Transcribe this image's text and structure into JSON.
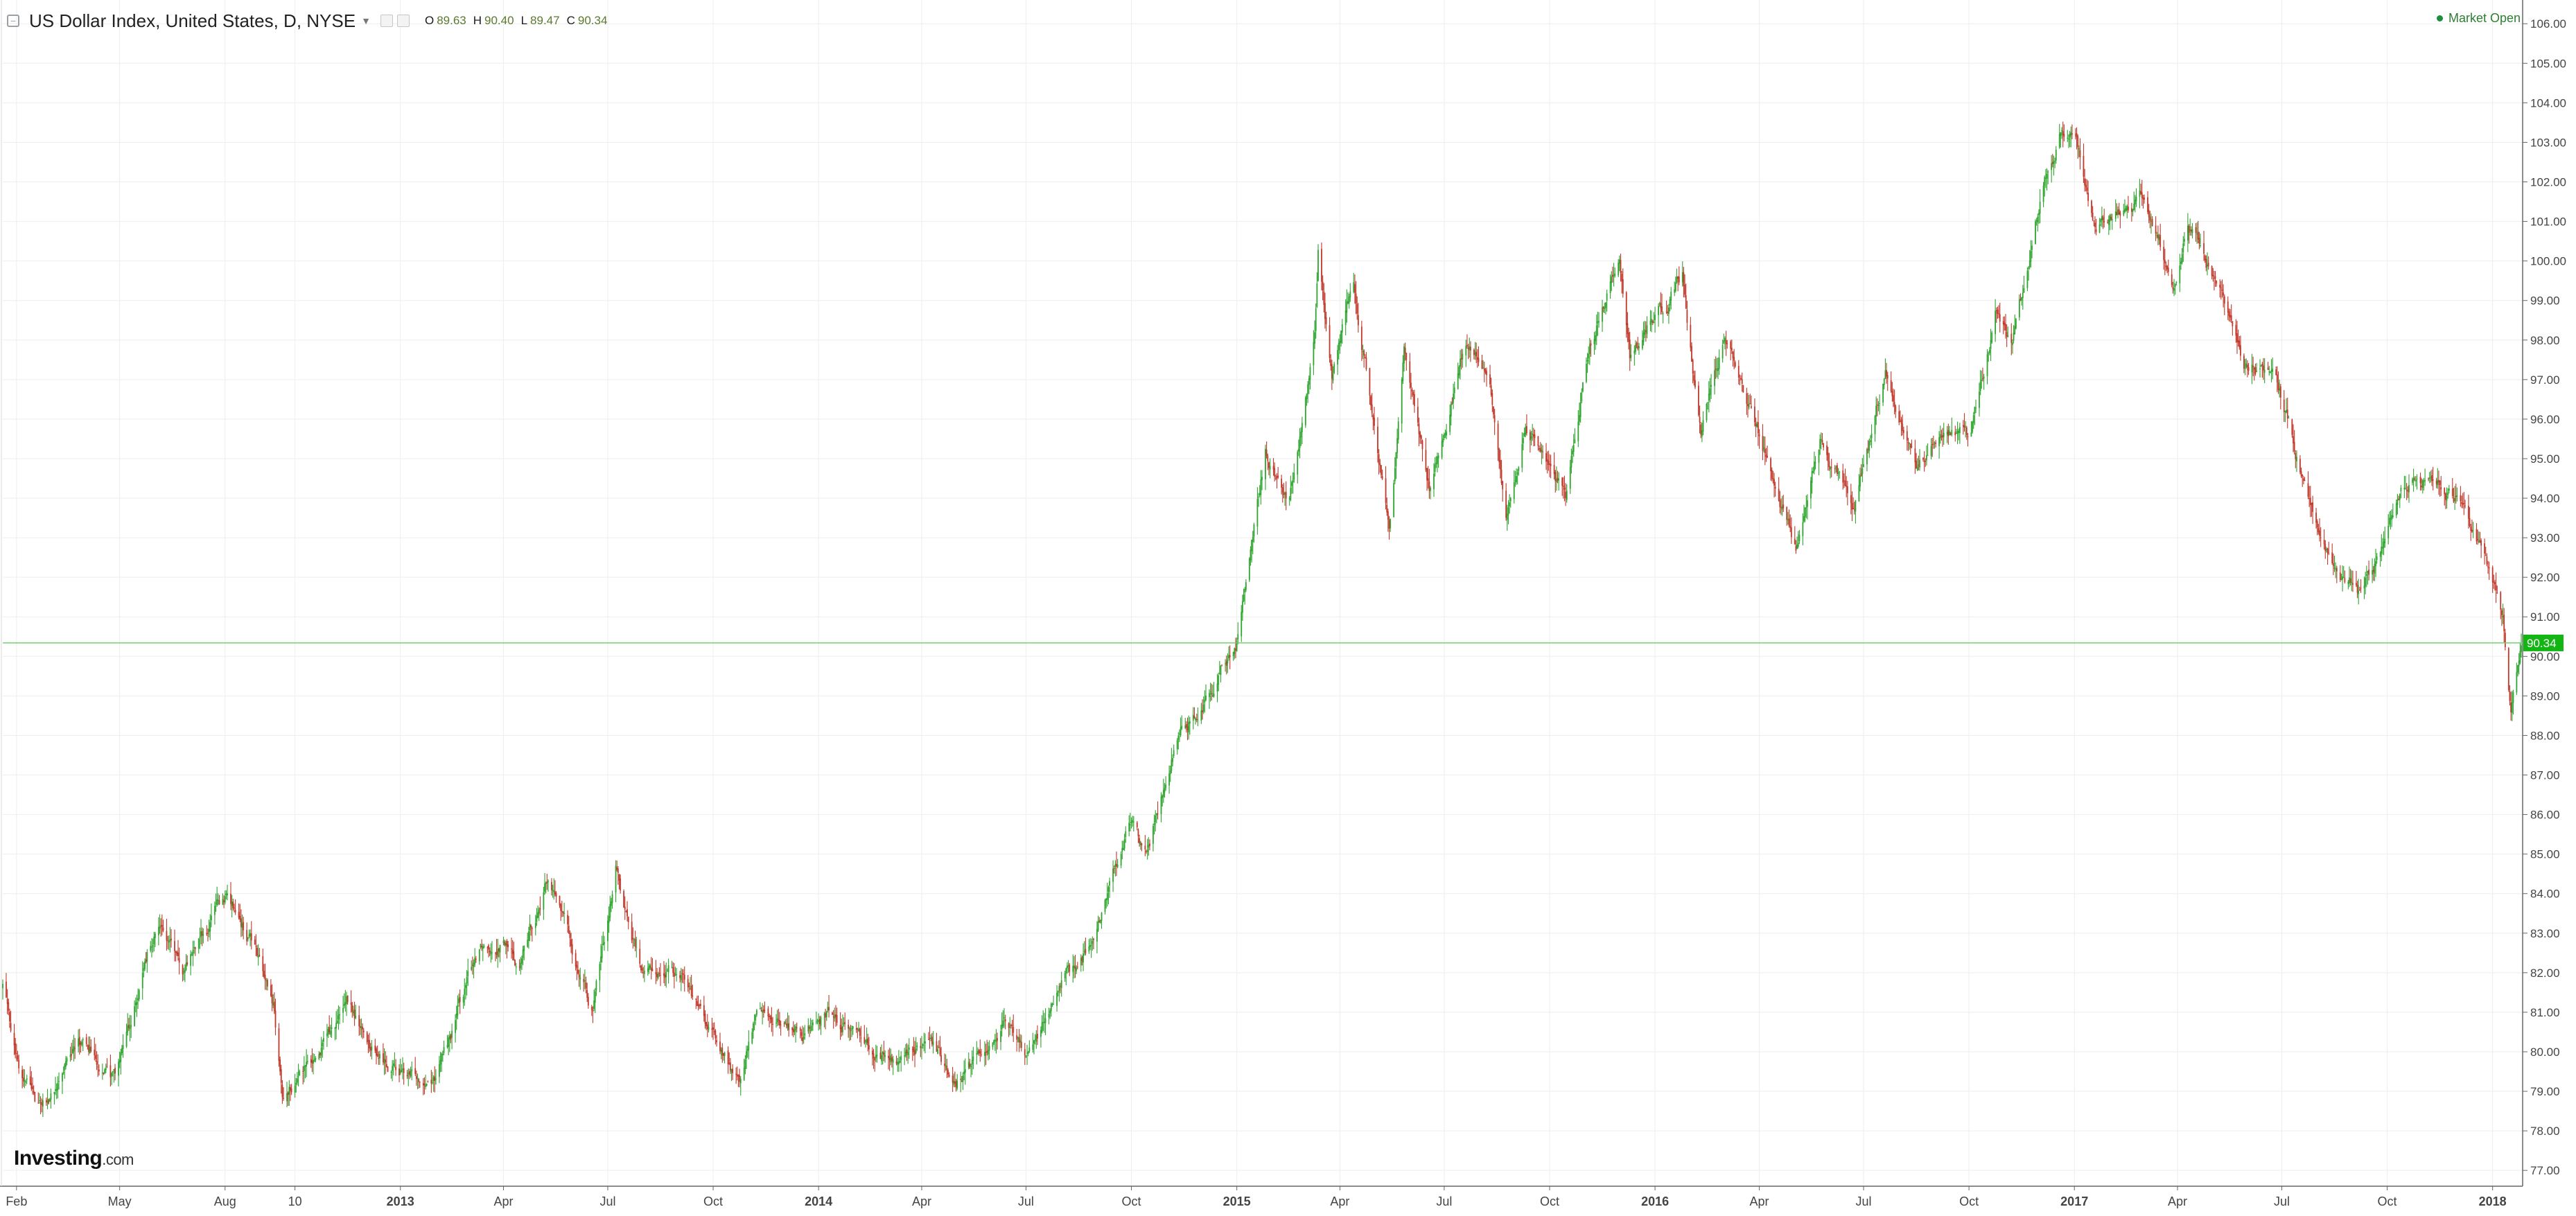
{
  "header": {
    "title": "US Dollar Index, United States, D, NYSE",
    "ohlc": {
      "o_label": "O",
      "o": "89.63",
      "h_label": "H",
      "h": "90.40",
      "l_label": "L",
      "l": "89.47",
      "c_label": "C",
      "c": "90.34"
    },
    "market_status": "Market Open"
  },
  "logo": {
    "brand": "Investing",
    "suffix": ".com"
  },
  "icons": {
    "collapse": "minus-square-icon",
    "dropdown": "caret-down-icon",
    "status": "green-dot-icon"
  },
  "colors": {
    "up": "#2ea52e",
    "down": "#c0392b",
    "last_price_line": "#6fd36f",
    "last_price_badge": "#12b512",
    "grid": "#eeeeee",
    "axis": "#666666"
  },
  "chart_data": {
    "type": "candlestick",
    "title": "US Dollar Index, United States, D, NYSE",
    "last_price": 90.34,
    "last_price_label": "90.34",
    "ylim": [
      76.6,
      106.6
    ],
    "y_ticks": [
      "77.00",
      "78.00",
      "79.00",
      "80.00",
      "81.00",
      "82.00",
      "83.00",
      "84.00",
      "85.00",
      "86.00",
      "87.00",
      "88.00",
      "89.00",
      "90.00",
      "91.00",
      "92.00",
      "93.00",
      "94.00",
      "95.00",
      "96.00",
      "97.00",
      "98.00",
      "99.00",
      "100.00",
      "101.00",
      "102.00",
      "103.00",
      "104.00",
      "105.00",
      "106.00"
    ],
    "x_range": [
      "2012-01-20",
      "2018-01-26"
    ],
    "x_ticks": [
      {
        "date": "2012-02-01",
        "label": "Feb",
        "major": false
      },
      {
        "date": "2012-05-01",
        "label": "May",
        "major": false
      },
      {
        "date": "2012-08-01",
        "label": "Aug",
        "major": false
      },
      {
        "date": "2012-10-01",
        "label": "10",
        "major": false
      },
      {
        "date": "2013-01-01",
        "label": "2013",
        "major": true
      },
      {
        "date": "2013-04-01",
        "label": "Apr",
        "major": false
      },
      {
        "date": "2013-07-01",
        "label": "Jul",
        "major": false
      },
      {
        "date": "2013-10-01",
        "label": "Oct",
        "major": false
      },
      {
        "date": "2014-01-01",
        "label": "2014",
        "major": true
      },
      {
        "date": "2014-04-01",
        "label": "Apr",
        "major": false
      },
      {
        "date": "2014-07-01",
        "label": "Jul",
        "major": false
      },
      {
        "date": "2014-10-01",
        "label": "Oct",
        "major": false
      },
      {
        "date": "2015-01-01",
        "label": "2015",
        "major": true
      },
      {
        "date": "2015-04-01",
        "label": "Apr",
        "major": false
      },
      {
        "date": "2015-07-01",
        "label": "Jul",
        "major": false
      },
      {
        "date": "2015-10-01",
        "label": "Oct",
        "major": false
      },
      {
        "date": "2016-01-01",
        "label": "2016",
        "major": true
      },
      {
        "date": "2016-04-01",
        "label": "Apr",
        "major": false
      },
      {
        "date": "2016-07-01",
        "label": "Jul",
        "major": false
      },
      {
        "date": "2016-10-01",
        "label": "Oct",
        "major": false
      },
      {
        "date": "2017-01-01",
        "label": "2017",
        "major": true
      },
      {
        "date": "2017-04-01",
        "label": "Apr",
        "major": false
      },
      {
        "date": "2017-07-01",
        "label": "Jul",
        "major": false
      },
      {
        "date": "2017-10-01",
        "label": "Oct",
        "major": false
      },
      {
        "date": "2018-01-01",
        "label": "2018",
        "major": true
      }
    ],
    "close_path": [
      [
        "2012-01-20",
        81.6
      ],
      [
        "2012-02-05",
        79.5
      ],
      [
        "2012-02-20",
        78.6
      ],
      [
        "2012-03-05",
        78.9
      ],
      [
        "2012-03-25",
        80.3
      ],
      [
        "2012-04-10",
        79.9
      ],
      [
        "2012-04-28",
        79.2
      ],
      [
        "2012-05-25",
        82.4
      ],
      [
        "2012-06-03",
        83.2
      ],
      [
        "2012-06-25",
        82.0
      ],
      [
        "2012-07-25",
        83.5
      ],
      [
        "2012-08-03",
        83.9
      ],
      [
        "2012-08-25",
        82.7
      ],
      [
        "2012-09-12",
        81.1
      ],
      [
        "2012-09-20",
        79.0
      ],
      [
        "2012-10-15",
        79.7
      ],
      [
        "2012-11-15",
        81.1
      ],
      [
        "2012-12-10",
        80.0
      ],
      [
        "2012-12-28",
        79.6
      ],
      [
        "2013-01-10",
        79.3
      ],
      [
        "2013-01-31",
        79.5
      ],
      [
        "2013-02-15",
        80.5
      ],
      [
        "2013-03-12",
        82.8
      ],
      [
        "2013-03-31",
        82.9
      ],
      [
        "2013-04-15",
        82.2
      ],
      [
        "2013-05-10",
        84.4
      ],
      [
        "2013-05-25",
        83.2
      ],
      [
        "2013-06-18",
        81.0
      ],
      [
        "2013-07-08",
        84.7
      ],
      [
        "2013-07-31",
        82.0
      ],
      [
        "2013-09-05",
        82.1
      ],
      [
        "2013-09-25",
        80.6
      ],
      [
        "2013-10-24",
        79.2
      ],
      [
        "2013-11-10",
        81.1
      ],
      [
        "2013-12-20",
        80.4
      ],
      [
        "2014-01-10",
        81.0
      ],
      [
        "2014-02-01",
        80.6
      ],
      [
        "2014-03-10",
        79.7
      ],
      [
        "2014-04-03",
        80.2
      ],
      [
        "2014-05-05",
        79.3
      ],
      [
        "2014-06-10",
        80.7
      ],
      [
        "2014-07-01",
        79.9
      ],
      [
        "2014-07-30",
        81.5
      ],
      [
        "2014-08-28",
        82.7
      ],
      [
        "2014-09-28",
        85.7
      ],
      [
        "2014-10-15",
        85.0
      ],
      [
        "2014-11-07",
        87.8
      ],
      [
        "2014-12-08",
        89.2
      ],
      [
        "2014-12-31",
        90.2
      ],
      [
        "2015-01-26",
        95.2
      ],
      [
        "2015-02-15",
        94.0
      ],
      [
        "2015-03-10",
        98.0
      ],
      [
        "2015-03-13",
        100.3
      ],
      [
        "2015-03-25",
        97.0
      ],
      [
        "2015-04-13",
        99.5
      ],
      [
        "2015-05-14",
        93.3
      ],
      [
        "2015-05-27",
        97.5
      ],
      [
        "2015-06-18",
        94.2
      ],
      [
        "2015-07-20",
        97.9
      ],
      [
        "2015-08-10",
        96.9
      ],
      [
        "2015-08-24",
        93.2
      ],
      [
        "2015-09-10",
        95.8
      ],
      [
        "2015-10-15",
        94.0
      ],
      [
        "2015-11-05",
        97.8
      ],
      [
        "2015-12-01",
        100.2
      ],
      [
        "2015-12-10",
        97.6
      ],
      [
        "2016-01-01",
        98.6
      ],
      [
        "2016-01-25",
        99.6
      ],
      [
        "2016-02-10",
        95.7
      ],
      [
        "2016-03-01",
        98.1
      ],
      [
        "2016-04-15",
        94.5
      ],
      [
        "2016-05-03",
        92.6
      ],
      [
        "2016-05-25",
        95.5
      ],
      [
        "2016-06-23",
        93.6
      ],
      [
        "2016-07-20",
        97.3
      ],
      [
        "2016-08-18",
        94.6
      ],
      [
        "2016-09-05",
        95.8
      ],
      [
        "2016-10-01",
        95.4
      ],
      [
        "2016-10-25",
        98.8
      ],
      [
        "2016-11-08",
        97.8
      ],
      [
        "2016-12-01",
        101.5
      ],
      [
        "2016-12-20",
        103.3
      ],
      [
        "2017-01-03",
        103.2
      ],
      [
        "2017-01-20",
        100.7
      ],
      [
        "2017-02-15",
        101.3
      ],
      [
        "2017-03-01",
        101.6
      ],
      [
        "2017-03-28",
        99.4
      ],
      [
        "2017-04-10",
        100.9
      ],
      [
        "2017-05-10",
        99.0
      ],
      [
        "2017-05-30",
        97.3
      ],
      [
        "2017-06-25",
        97.3
      ],
      [
        "2017-07-25",
        93.9
      ],
      [
        "2017-08-10",
        92.8
      ],
      [
        "2017-09-08",
        91.5
      ],
      [
        "2017-10-05",
        93.5
      ],
      [
        "2017-10-27",
        94.8
      ],
      [
        "2017-11-08",
        94.5
      ],
      [
        "2017-12-08",
        93.8
      ],
      [
        "2017-12-28",
        92.2
      ],
      [
        "2018-01-10",
        91.0
      ],
      [
        "2018-01-17",
        88.7
      ],
      [
        "2018-01-26",
        90.3
      ]
    ]
  }
}
